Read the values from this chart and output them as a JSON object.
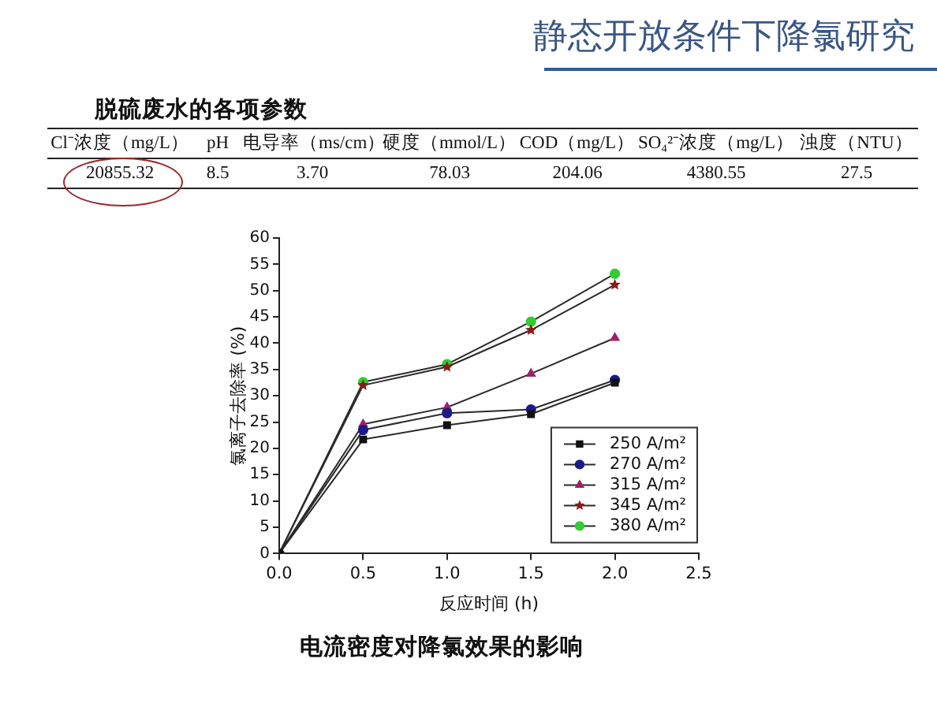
{
  "chart_data": [
    {
      "type": "other",
      "title": "静态开放条件下降氯研究",
      "subtitle": "脱硫废水的各项参数",
      "annotations": [
        "Cl⁻浓度（mg/L）",
        "pH",
        "电导率（ms/cm）",
        "硬度（mmol/L）",
        "COD（mg/L）",
        "SO₄²⁻浓度（mg/L）",
        "浊度（NTU）",
        "20855.32",
        "8.5",
        "3.70",
        "78.03",
        "204.06",
        "4380.55",
        "27.5"
      ]
    },
    {
      "type": "line",
      "title": "电流密度对降氯效果的影响",
      "xlabel": "反应时间 (h)",
      "ylabel": "氯离子去除率 (%)",
      "x": [
        0,
        0.5,
        1,
        1.5,
        2
      ],
      "series": [
        {
          "name": "250 A/m²",
          "color": "#111111",
          "marker": "square",
          "values": [
            0,
            21.7,
            24.4,
            26.5,
            32.5
          ]
        },
        {
          "name": "270 A/m²",
          "color": "#1a1a8c",
          "marker": "circle",
          "values": [
            0,
            23.5,
            26.7,
            27.4,
            33.0
          ]
        },
        {
          "name": "315 A/m²",
          "color": "#a0206a",
          "marker": "triangle",
          "values": [
            0,
            24.6,
            27.8,
            34.2,
            41.0
          ]
        },
        {
          "name": "345 A/m²",
          "color": "#8b1a1a",
          "marker": "star",
          "values": [
            0,
            32.0,
            35.5,
            42.5,
            51.1
          ]
        },
        {
          "name": "380 A/m²",
          "color": "#33cc33",
          "marker": "circle",
          "values": [
            0,
            32.6,
            36.0,
            44.1,
            53.2
          ]
        }
      ],
      "xlim": [
        0,
        2.5
      ],
      "xticks": [
        {
          "value": 0,
          "label": "0.0"
        },
        0.5,
        {
          "value": 1,
          "label": "1.0"
        },
        1.5,
        {
          "value": 2,
          "label": "2.0"
        },
        2.5
      ],
      "ylim": [
        0,
        60
      ],
      "yticks": [
        0,
        5,
        10,
        15,
        20,
        25,
        30,
        35,
        40,
        45,
        50,
        55,
        60
      ],
      "grid": false,
      "legend": "bottom right",
      "line_style": "solid"
    }
  ]
}
